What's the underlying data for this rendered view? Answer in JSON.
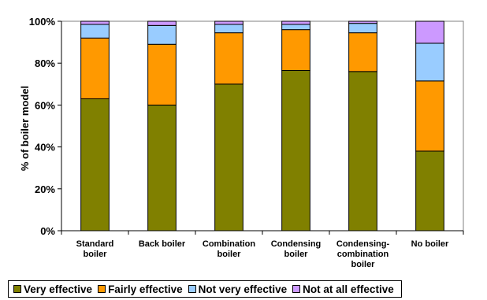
{
  "chart_data": {
    "type": "bar",
    "stacked": true,
    "title": "",
    "xlabel": "",
    "ylabel": "% of boiler model",
    "ylim": [
      0,
      100
    ],
    "yticks": [
      "0%",
      "20%",
      "40%",
      "60%",
      "80%",
      "100%"
    ],
    "categories": [
      [
        "Standard",
        "boiler"
      ],
      [
        "Back boiler"
      ],
      [
        "Combination",
        "boiler"
      ],
      [
        "Condensing",
        "boiler"
      ],
      [
        "Condensing-",
        "combination",
        "boiler"
      ],
      [
        "No boiler"
      ]
    ],
    "series": [
      {
        "name": "Very effective",
        "color": "#808000",
        "values": [
          63,
          60,
          70,
          76.5,
          76,
          38
        ]
      },
      {
        "name": "Fairly effective",
        "color": "#ff9900",
        "values": [
          29,
          29,
          24.5,
          19.5,
          18.5,
          33.5
        ]
      },
      {
        "name": "Not very effective",
        "color": "#99ccff",
        "values": [
          6.5,
          9,
          4,
          2.5,
          4.5,
          18
        ]
      },
      {
        "name": "Not at all effective",
        "color": "#cc99ff",
        "values": [
          1.5,
          2,
          1.5,
          1.5,
          1,
          10.5
        ]
      }
    ],
    "grid": false,
    "legend_position": "bottom"
  }
}
